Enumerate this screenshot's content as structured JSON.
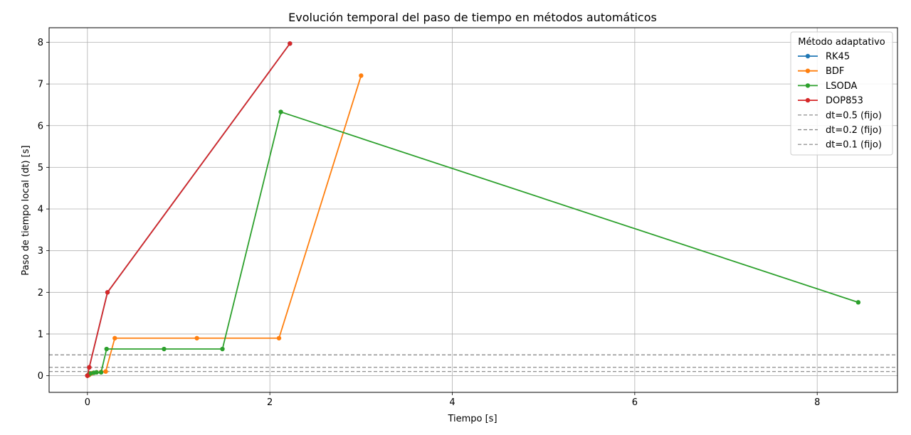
{
  "chart_data": {
    "type": "line",
    "title": "Evolución temporal del paso de tiempo en métodos automáticos",
    "xlabel": "Tiempo [s]",
    "ylabel": "Paso de tiempo local (dt) [s]",
    "xlim": [
      -0.42,
      8.88
    ],
    "ylim": [
      -0.4,
      8.35
    ],
    "xticks": [
      0,
      2,
      4,
      6,
      8
    ],
    "yticks": [
      0,
      1,
      2,
      3,
      4,
      5,
      6,
      7,
      8
    ],
    "grid": true,
    "legend": {
      "title": "Método adaptativo",
      "placement": "top-right"
    },
    "series": [
      {
        "name": "RK45",
        "color": "#1f77b4",
        "marker": "circle",
        "x": [
          0.0,
          0.0,
          0.02,
          0.22,
          2.22
        ],
        "y": [
          0.0,
          0.0,
          0.2,
          2.0,
          7.97
        ]
      },
      {
        "name": "BDF",
        "color": "#ff7f0e",
        "marker": "circle",
        "x": [
          0.0,
          0.01,
          0.02,
          0.05,
          0.1,
          0.15,
          0.2,
          0.3,
          1.2,
          2.1,
          3.0
        ],
        "y": [
          0.0,
          0.01,
          0.02,
          0.06,
          0.08,
          0.09,
          0.1,
          0.9,
          0.9,
          0.9,
          7.2
        ]
      },
      {
        "name": "LSODA",
        "color": "#2ca02c",
        "marker": "circle",
        "x": [
          0.0,
          0.01,
          0.03,
          0.07,
          0.1,
          0.15,
          0.21,
          0.84,
          1.48,
          2.12,
          8.45
        ],
        "y": [
          0.0,
          0.02,
          0.05,
          0.07,
          0.08,
          0.08,
          0.64,
          0.64,
          0.64,
          6.33,
          1.76
        ]
      },
      {
        "name": "DOP853",
        "color": "#d62728",
        "marker": "circle",
        "x": [
          0.0,
          0.0,
          0.02,
          0.22,
          2.22
        ],
        "y": [
          0.0,
          0.0,
          0.2,
          2.0,
          7.97
        ]
      }
    ],
    "reference_lines": [
      {
        "name": "dt=0.5 (fijo)",
        "y": 0.5,
        "color": "#808080",
        "style": "dashed"
      },
      {
        "name": "dt=0.2 (fijo)",
        "y": 0.2,
        "color": "#808080",
        "style": "dashed"
      },
      {
        "name": "dt=0.1 (fijo)",
        "y": 0.1,
        "color": "#808080",
        "style": "dashed"
      }
    ]
  }
}
